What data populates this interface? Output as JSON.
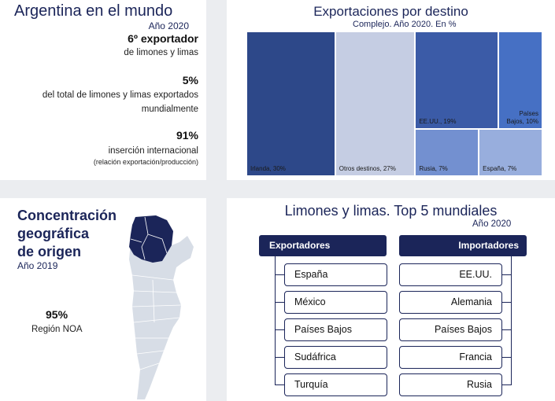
{
  "world": {
    "title": "Argentina en el mundo",
    "year": "Año 2020",
    "stat1_big": "6º exportador",
    "stat1_text": "de limones y limas",
    "stat2_big": "5%",
    "stat2_line1": "del total de limones y limas exportados",
    "stat2_line2": "mundialmente",
    "stat3_big": "91%",
    "stat3_text": "inserción internacional",
    "stat3_small": "(relación exportación/producción)"
  },
  "exports": {
    "title": "Exportaciones por destino",
    "subtitle": "Complejo. Año 2020. En %"
  },
  "chart_data": {
    "type": "treemap",
    "title": "Exportaciones por destino",
    "subtitle": "Complejo. Año 2020. En %",
    "unit": "%",
    "items": [
      {
        "name": "Irlanda",
        "value": 30,
        "label": "Irlanda, 30%",
        "color": "#2d4889"
      },
      {
        "name": "Otros destinos",
        "value": 27,
        "label": "Otros destinos, 27%",
        "color": "#c5cde3"
      },
      {
        "name": "EE.UU.",
        "value": 19,
        "label": "EE.UU., 19%",
        "color": "#3b5ba7"
      },
      {
        "name": "Países Bajos",
        "value": 10,
        "label_line1": "Países",
        "label_line2": "Bajos, 10%",
        "color": "#4670c4"
      },
      {
        "name": "Rusia",
        "value": 7,
        "label": "Rusia, 7%",
        "color": "#7390d0"
      },
      {
        "name": "España",
        "value": 7,
        "label": "España, 7%",
        "color": "#98aedd"
      }
    ]
  },
  "origin": {
    "title_line1": "Concentración",
    "title_line2": "geográfica",
    "title_line3": "de origen",
    "year": "Año 2019",
    "pct": "95%",
    "region": "Región NOA",
    "map_base_color": "#d7dde6",
    "map_highlight_color": "#1b2559"
  },
  "top5": {
    "title": "Limones y limas. Top 5 mundiales",
    "year": "Año 2020",
    "exporters_label": "Exportadores",
    "importers_label": "Importadores",
    "exporters": [
      "España",
      "México",
      "Países Bajos",
      "Sudáfrica",
      "Turquía"
    ],
    "importers": [
      "EE.UU.",
      "Alemania",
      "Países Bajos",
      "Francia",
      "Rusia"
    ]
  }
}
